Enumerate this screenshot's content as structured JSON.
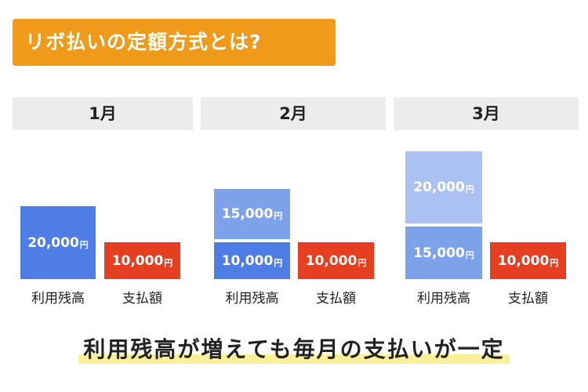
{
  "title": "リボ払いの定額方式とは?",
  "months": [
    {
      "label": "1月",
      "stack": [
        {
          "amount": "20,000",
          "unit": "円"
        }
      ],
      "payment": {
        "amount": "10,000",
        "unit": "円"
      },
      "balance_label": "利用残高",
      "payment_label": "支払額"
    },
    {
      "label": "2月",
      "stack": [
        {
          "amount": "15,000",
          "unit": "円"
        },
        {
          "amount": "10,000",
          "unit": "円"
        }
      ],
      "payment": {
        "amount": "10,000",
        "unit": "円"
      },
      "balance_label": "利用残高",
      "payment_label": "支払額"
    },
    {
      "label": "3月",
      "stack": [
        {
          "amount": "20,000",
          "unit": "円"
        },
        {
          "amount": "15,000",
          "unit": "円"
        }
      ],
      "payment": {
        "amount": "10,000",
        "unit": "円"
      },
      "balance_label": "利用残高",
      "payment_label": "支払額"
    }
  ],
  "conclusion": "利用残高が増えても毎月の支払いが一定",
  "colors": {
    "orange": "#f09a1c",
    "blue": "#4f7de6",
    "mid_blue": "#7ea2ea",
    "light_blue": "#aac1f1",
    "red": "#e53f22",
    "highlight": "#fbf09a"
  }
}
